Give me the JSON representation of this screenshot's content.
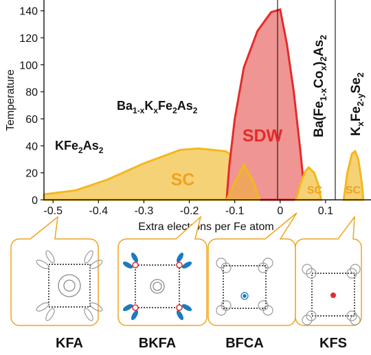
{
  "axes": {
    "xlabel": "Extra electrons per Fe atom",
    "ylabel": "Temperature",
    "x_ticks": [
      "-0.5",
      "-0.4",
      "-0.3",
      "-0.2",
      "-0.1",
      "0",
      "0.1"
    ],
    "y_ticks": [
      "0",
      "20",
      "40",
      "60",
      "80",
      "100",
      "120",
      "140"
    ],
    "x_range": [
      -0.52,
      0.2
    ],
    "y_range": [
      0,
      148
    ]
  },
  "compounds": {
    "kfa": {
      "main": "KFe",
      "sub1": "2",
      "mid": "As",
      "sub2": "2"
    },
    "bkfa": {
      "p1": "Ba",
      "s1": "1-x",
      "p2": "K",
      "s2": "x",
      "p3": "Fe",
      "s3": "2",
      "p4": "As",
      "s4": "2"
    },
    "bfca": {
      "p1": "Ba(Fe",
      "s1": "1-x",
      "p2": "Co",
      "s2": "x",
      "p3": ")",
      "s3": "2",
      "p4": "As",
      "s4": "2"
    },
    "kfs": {
      "p1": "K",
      "s1": "x",
      "p2": "Fe",
      "s2": "2-y",
      "p3": "Se",
      "s3": "2"
    }
  },
  "regions": {
    "sc_main": "SC",
    "sdw": "SDW",
    "sc_bfca": "SC",
    "sc_kfs": "SC"
  },
  "phase_data": {
    "sc_main": [
      [
        -0.52,
        4
      ],
      [
        -0.45,
        7
      ],
      [
        -0.38,
        15
      ],
      [
        -0.3,
        27
      ],
      [
        -0.22,
        37
      ],
      [
        -0.18,
        38
      ],
      [
        -0.12,
        36
      ],
      [
        -0.08,
        26
      ],
      [
        -0.06,
        14
      ],
      [
        -0.045,
        0
      ]
    ],
    "sdw": [
      [
        -0.118,
        0
      ],
      [
        -0.112,
        25
      ],
      [
        -0.1,
        60
      ],
      [
        -0.08,
        98
      ],
      [
        -0.05,
        125
      ],
      [
        -0.02,
        139
      ],
      [
        0,
        141
      ],
      [
        0.015,
        115
      ],
      [
        0.03,
        80
      ],
      [
        0.045,
        35
      ],
      [
        0.055,
        0
      ]
    ],
    "sc_bfca": [
      [
        0.035,
        0
      ],
      [
        0.045,
        12
      ],
      [
        0.055,
        21
      ],
      [
        0.063,
        24
      ],
      [
        0.075,
        20
      ],
      [
        0.085,
        10
      ],
      [
        0.09,
        0
      ]
    ],
    "sc_kfs": [
      [
        0.14,
        0
      ],
      [
        0.148,
        20
      ],
      [
        0.158,
        34
      ],
      [
        0.165,
        36
      ],
      [
        0.172,
        30
      ],
      [
        0.18,
        12
      ],
      [
        0.183,
        0
      ]
    ]
  },
  "panels": [
    {
      "label": "KFA"
    },
    {
      "label": "BKFA"
    },
    {
      "label": "BFCA"
    },
    {
      "label": "KFS"
    }
  ],
  "colors": {
    "sc_fill": "#f6d277",
    "sc_stroke": "#f3b81e",
    "sdw_fill": "#ef9593",
    "sdw_stroke": "#e52b2b",
    "overlap_fill": "#efa65c",
    "panel_border": "#f0a21e",
    "electron_pocket": "#1a7bbf",
    "hole_pocket": "#e52b2b"
  }
}
